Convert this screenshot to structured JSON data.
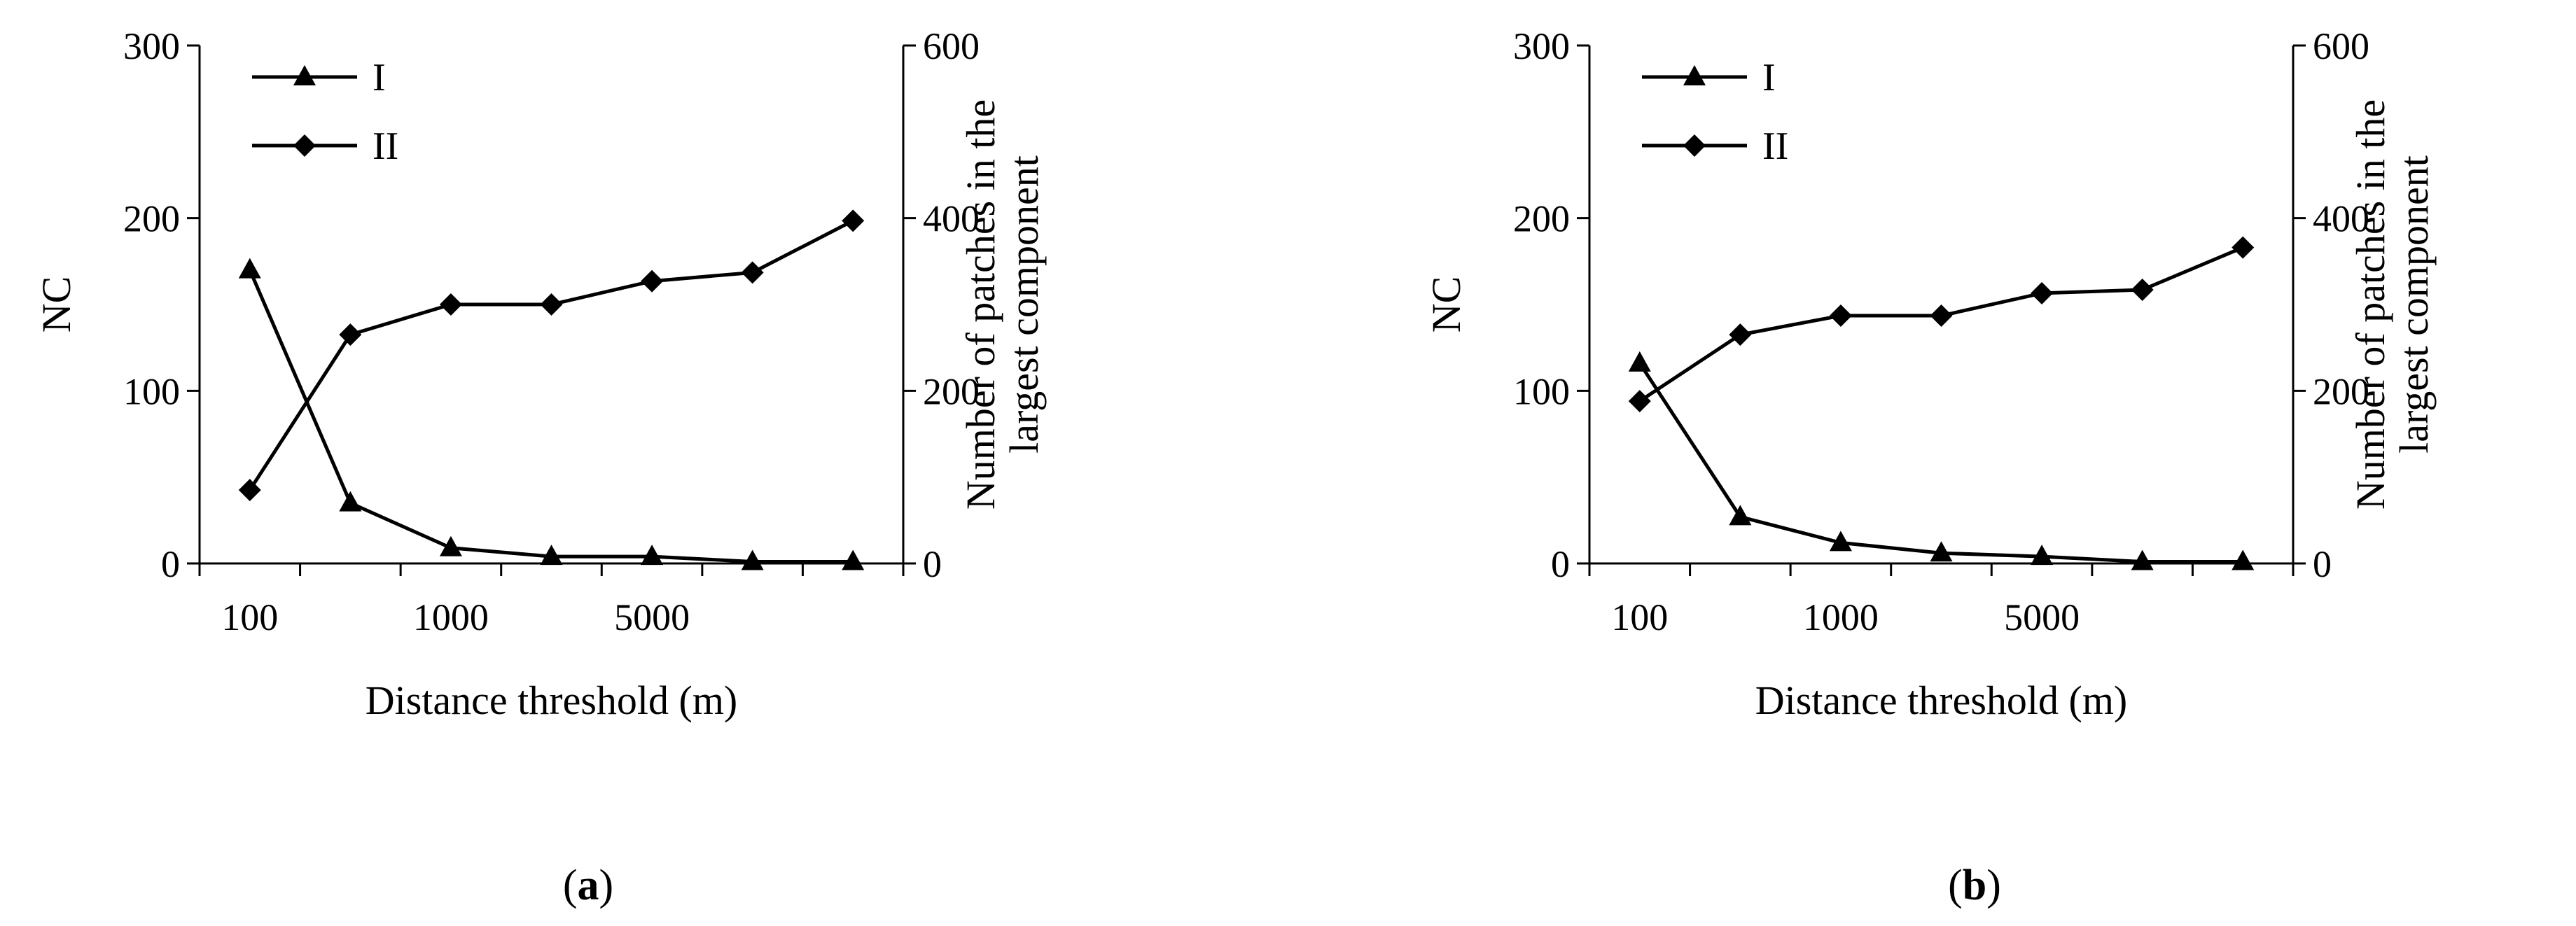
{
  "chart_data": [
    {
      "type": "line",
      "panel_label": "a",
      "x_ticks": [
        "100",
        "1000",
        "5000"
      ],
      "x_categories": [
        "100",
        "",
        "1000",
        "",
        "5000",
        "",
        ""
      ],
      "xlabel": "Distance threshold (m)",
      "ylabel_left": "NC",
      "ylabel_right": "Number of patches in the largest component",
      "ylabel_right_lines": [
        "Number of patches in the",
        "largest component"
      ],
      "ylim_left": [
        0,
        300
      ],
      "ylim_right": [
        0,
        600
      ],
      "left_ticks": [
        "0",
        "100",
        "200",
        "300"
      ],
      "right_ticks": [
        "0",
        "200",
        "400",
        "600"
      ],
      "series": [
        {
          "name": "I",
          "axis": "left",
          "marker": "triangle",
          "values": [
            170,
            35,
            9,
            4,
            4,
            1,
            1
          ]
        },
        {
          "name": "II",
          "axis": "right",
          "marker": "diamond",
          "values": [
            85,
            265,
            300,
            300,
            327,
            337,
            397
          ]
        }
      ],
      "legend_position": "top-left",
      "grid": false
    },
    {
      "type": "line",
      "panel_label": "b",
      "x_ticks": [
        "100",
        "1000",
        "5000"
      ],
      "x_categories": [
        "100",
        "",
        "1000",
        "",
        "5000",
        "",
        ""
      ],
      "xlabel": "Distance threshold (m)",
      "ylabel_left": "NC",
      "ylabel_right": "Number of patches in the largest component",
      "ylabel_right_lines": [
        "Number of patches in the",
        "largest component"
      ],
      "ylim_left": [
        0,
        300
      ],
      "ylim_right": [
        0,
        600
      ],
      "left_ticks": [
        "0",
        "100",
        "200",
        "300"
      ],
      "right_ticks": [
        "0",
        "200",
        "400",
        "600"
      ],
      "series": [
        {
          "name": "I",
          "axis": "left",
          "marker": "triangle",
          "values": [
            116,
            27,
            12,
            6,
            4,
            1,
            1
          ]
        },
        {
          "name": "II",
          "axis": "right",
          "marker": "diamond",
          "values": [
            188,
            265,
            287,
            287,
            313,
            317,
            366
          ]
        }
      ],
      "legend_position": "top-left",
      "grid": false
    }
  ],
  "colors": {
    "line": "#000000",
    "background": "#ffffff"
  }
}
